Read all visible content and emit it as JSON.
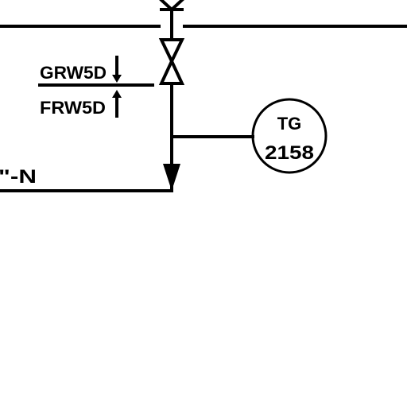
{
  "diagram": {
    "labels": {
      "upper_elevation": "GRW5D",
      "lower_elevation": "FRW5D",
      "line_end": "\"-N"
    },
    "instrument": {
      "tag_type": "TG",
      "tag_number": "2158"
    },
    "colors": {
      "line": "#000000",
      "background": "#ffffff"
    }
  }
}
